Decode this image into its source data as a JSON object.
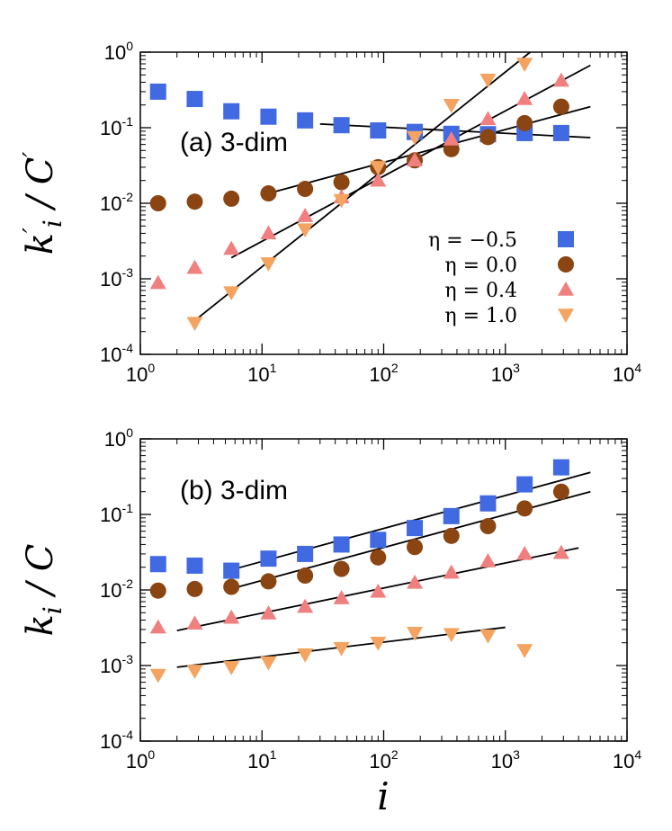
{
  "chart_data": [
    {
      "type": "scatter",
      "panel": "a",
      "annotation": "(a) 3-dim",
      "xlabel": "",
      "ylabel": "k′i / C′",
      "xscale": "log",
      "yscale": "log",
      "xlim": [
        1,
        10000
      ],
      "ylim": [
        0.0001,
        1
      ],
      "x_ticks": [
        {
          "base": "10",
          "exp": "0"
        },
        {
          "base": "10",
          "exp": "1"
        },
        {
          "base": "10",
          "exp": "2"
        },
        {
          "base": "10",
          "exp": "3"
        },
        {
          "base": "10",
          "exp": "4"
        }
      ],
      "y_ticks": [
        {
          "base": "10",
          "exp": "-4"
        },
        {
          "base": "10",
          "exp": "-3"
        },
        {
          "base": "10",
          "exp": "-2"
        },
        {
          "base": "10",
          "exp": "-1"
        },
        {
          "base": "10",
          "exp": "0"
        }
      ],
      "legend_position": "right-middle",
      "series": [
        {
          "name": "η = −0.5",
          "marker": "square",
          "color": "#4169e1",
          "x": [
            1.4,
            2.8,
            5.6,
            11.3,
            22.6,
            45,
            90,
            180,
            360,
            720,
            1440,
            2880
          ],
          "y": [
            0.3,
            0.24,
            0.165,
            0.14,
            0.125,
            0.108,
            0.092,
            0.088,
            0.083,
            0.082,
            0.085,
            0.085
          ]
        },
        {
          "name": "η = 0.0",
          "marker": "circle",
          "color": "#8b4513",
          "x": [
            1.4,
            2.8,
            5.6,
            11.3,
            22.6,
            45,
            90,
            180,
            360,
            720,
            1440,
            2880
          ],
          "y": [
            0.01,
            0.0105,
            0.0115,
            0.0135,
            0.0155,
            0.019,
            0.03,
            0.037,
            0.052,
            0.075,
            0.115,
            0.19
          ]
        },
        {
          "name": "η = 0.4",
          "marker": "triangle-up",
          "color": "#f08080",
          "x": [
            1.4,
            2.8,
            5.6,
            11.3,
            22.6,
            45,
            90,
            180,
            360,
            720,
            1440,
            2880
          ],
          "y": [
            0.00088,
            0.0014,
            0.0025,
            0.004,
            0.0068,
            0.012,
            0.02,
            0.037,
            0.07,
            0.13,
            0.24,
            0.42
          ]
        },
        {
          "name": "η = 1.0",
          "marker": "triangle-down",
          "color": "#f4a460",
          "x": [
            2.8,
            5.6,
            11.3,
            22.6,
            45,
            90,
            180,
            360,
            720,
            1440
          ],
          "y": [
            0.00026,
            0.00066,
            0.0016,
            0.0045,
            0.011,
            0.03,
            0.075,
            0.2,
            0.43,
            0.7
          ]
        }
      ],
      "fit_lines": [
        {
          "for": "η = −0.5",
          "x": [
            30,
            5000
          ],
          "y": [
            0.112,
            0.074
          ]
        },
        {
          "for": "η = 0.0",
          "x": [
            11.3,
            5000
          ],
          "y": [
            0.0135,
            0.19
          ]
        },
        {
          "for": "η = 0.4",
          "x": [
            5.6,
            5000
          ],
          "y": [
            0.0019,
            0.67
          ]
        },
        {
          "for": "η = 1.0",
          "x": [
            2.8,
            1600
          ],
          "y": [
            0.00028,
            1.0
          ]
        }
      ]
    },
    {
      "type": "scatter",
      "panel": "b",
      "annotation": "(b) 3-dim",
      "xlabel": "i",
      "ylabel": "ki / C",
      "xscale": "log",
      "yscale": "log",
      "xlim": [
        1,
        10000
      ],
      "ylim": [
        0.0001,
        1
      ],
      "x_ticks": [
        {
          "base": "10",
          "exp": "0"
        },
        {
          "base": "10",
          "exp": "1"
        },
        {
          "base": "10",
          "exp": "2"
        },
        {
          "base": "10",
          "exp": "3"
        },
        {
          "base": "10",
          "exp": "4"
        }
      ],
      "y_ticks": [
        {
          "base": "10",
          "exp": "-4"
        },
        {
          "base": "10",
          "exp": "-3"
        },
        {
          "base": "10",
          "exp": "-2"
        },
        {
          "base": "10",
          "exp": "-1"
        },
        {
          "base": "10",
          "exp": "0"
        }
      ],
      "series": [
        {
          "marker": "square",
          "color": "#4169e1",
          "x": [
            1.4,
            2.8,
            5.6,
            11.3,
            22.6,
            45,
            90,
            180,
            360,
            720,
            1440,
            2880
          ],
          "y": [
            0.022,
            0.021,
            0.018,
            0.026,
            0.03,
            0.04,
            0.046,
            0.066,
            0.095,
            0.14,
            0.25,
            0.42
          ]
        },
        {
          "marker": "circle",
          "color": "#8b4513",
          "x": [
            1.4,
            2.8,
            5.6,
            11.3,
            22.6,
            45,
            90,
            180,
            360,
            720,
            1440,
            2880
          ],
          "y": [
            0.0098,
            0.0103,
            0.011,
            0.013,
            0.0155,
            0.019,
            0.027,
            0.037,
            0.052,
            0.07,
            0.12,
            0.2
          ]
        },
        {
          "marker": "triangle-up",
          "color": "#f08080",
          "x": [
            1.4,
            2.8,
            5.6,
            11.3,
            22.6,
            45,
            90,
            180,
            360,
            720,
            1440,
            2880
          ],
          "y": [
            0.0032,
            0.0036,
            0.0043,
            0.0049,
            0.006,
            0.0078,
            0.0095,
            0.0125,
            0.017,
            0.024,
            0.03,
            0.031
          ]
        },
        {
          "marker": "triangle-down",
          "color": "#f4a460",
          "x": [
            1.4,
            2.8,
            5.6,
            11.3,
            22.6,
            45,
            90,
            180,
            360,
            720,
            1440
          ],
          "y": [
            0.00075,
            0.00085,
            0.00095,
            0.0011,
            0.0014,
            0.0017,
            0.002,
            0.0027,
            0.0026,
            0.0025,
            0.0016
          ]
        }
      ],
      "fit_lines": [
        {
          "x": [
            5.6,
            5000
          ],
          "y": [
            0.0185,
            0.36
          ]
        },
        {
          "x": [
            5.6,
            5000
          ],
          "y": [
            0.0104,
            0.2
          ]
        },
        {
          "x": [
            2,
            4000
          ],
          "y": [
            0.0029,
            0.036
          ]
        },
        {
          "x": [
            2,
            1000
          ],
          "y": [
            0.00095,
            0.0032
          ]
        }
      ]
    }
  ]
}
